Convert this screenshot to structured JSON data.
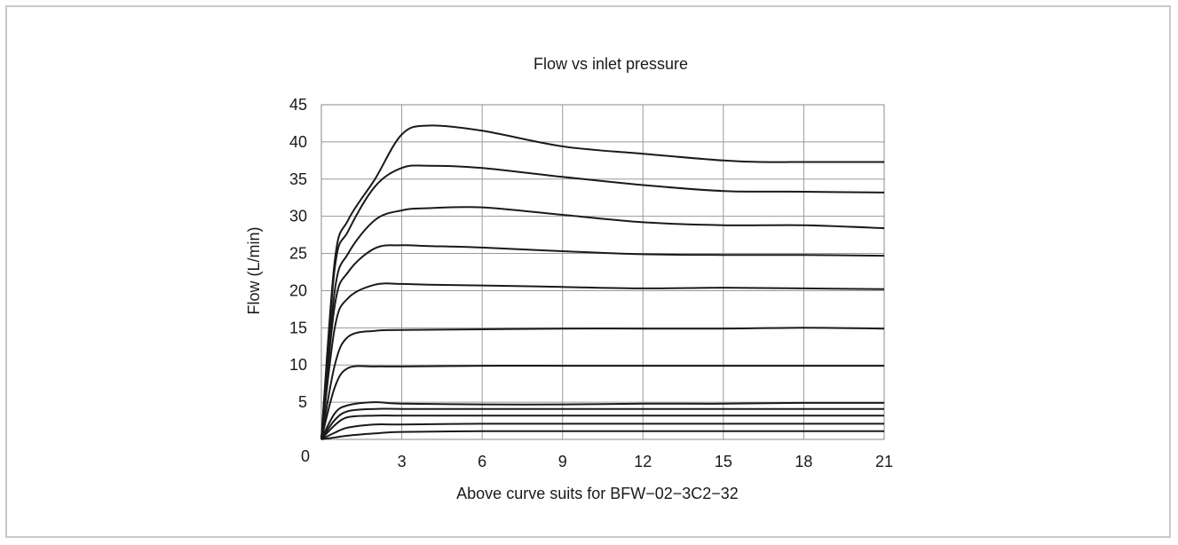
{
  "chart_data": {
    "type": "line",
    "title": "Flow vs inlet pressure",
    "xlabel": "Above curve suits for BFW−02−3C2−32",
    "ylabel": "Flow (L/min)",
    "xlim": [
      0,
      21
    ],
    "ylim": [
      0,
      45
    ],
    "x_ticks": [
      "3",
      "6",
      "9",
      "12",
      "15",
      "18",
      "21"
    ],
    "x_origin_label": "0",
    "y_ticks": [
      "5",
      "10",
      "15",
      "20",
      "25",
      "30",
      "35",
      "40",
      "45"
    ],
    "grid": true,
    "line_color": "#1a1a1a",
    "series": [
      {
        "x": [
          0,
          0.5,
          1,
          2,
          3,
          4,
          6,
          9,
          12,
          15,
          16.5,
          18,
          21
        ],
        "y": [
          0,
          24,
          29.5,
          35,
          41,
          42.2,
          41.5,
          39.4,
          38.4,
          37.5,
          37.3,
          37.3,
          37.3
        ]
      },
      {
        "x": [
          0,
          0.5,
          1,
          2,
          3,
          4,
          6,
          9,
          12,
          15,
          18,
          21
        ],
        "y": [
          0,
          23,
          28,
          34,
          36.5,
          36.8,
          36.5,
          35.3,
          34.2,
          33.4,
          33.3,
          33.2
        ]
      },
      {
        "x": [
          0,
          0.5,
          1,
          2,
          3,
          4,
          6,
          9,
          12,
          15,
          18,
          21
        ],
        "y": [
          0,
          20,
          25,
          29.5,
          30.8,
          31.1,
          31.2,
          30.2,
          29.2,
          28.8,
          28.8,
          28.4
        ]
      },
      {
        "x": [
          0,
          0.5,
          1,
          2,
          3,
          4,
          6,
          9,
          12,
          15,
          18,
          21
        ],
        "y": [
          0,
          18,
          22.5,
          25.7,
          26.1,
          26.0,
          25.8,
          25.3,
          24.9,
          24.8,
          24.8,
          24.7
        ]
      },
      {
        "x": [
          0,
          0.5,
          1,
          2,
          3,
          4,
          6,
          9,
          12,
          15,
          18,
          21
        ],
        "y": [
          0,
          15,
          19,
          20.8,
          20.9,
          20.8,
          20.7,
          20.5,
          20.3,
          20.4,
          20.3,
          20.2
        ]
      },
      {
        "x": [
          0,
          0.5,
          1,
          2,
          3,
          6,
          9,
          12,
          15,
          18,
          21
        ],
        "y": [
          0,
          10,
          13.8,
          14.6,
          14.7,
          14.8,
          14.9,
          14.9,
          14.9,
          15.0,
          14.9
        ]
      },
      {
        "x": [
          0,
          0.5,
          1,
          2,
          3,
          6,
          9,
          12,
          15,
          18,
          21
        ],
        "y": [
          0,
          7,
          9.6,
          9.8,
          9.8,
          9.9,
          9.9,
          9.9,
          9.9,
          9.9,
          9.9
        ]
      },
      {
        "x": [
          0,
          0.5,
          1,
          2,
          3,
          6,
          9,
          12,
          15,
          18,
          21
        ],
        "y": [
          0,
          3.5,
          4.6,
          5.0,
          4.8,
          4.7,
          4.7,
          4.8,
          4.8,
          4.9,
          4.9
        ]
      },
      {
        "x": [
          0,
          0.5,
          1,
          2,
          3,
          6,
          9,
          12,
          15,
          18,
          21
        ],
        "y": [
          0,
          2.6,
          3.8,
          4.1,
          4.1,
          4.1,
          4.1,
          4.1,
          4.1,
          4.1,
          4.1
        ]
      },
      {
        "x": [
          0,
          0.5,
          1,
          2,
          3,
          6,
          9,
          12,
          15,
          18,
          21
        ],
        "y": [
          0,
          1.9,
          3.0,
          3.2,
          3.2,
          3.2,
          3.2,
          3.2,
          3.2,
          3.2,
          3.2
        ]
      },
      {
        "x": [
          0,
          0.5,
          1,
          2,
          3,
          6,
          9,
          12,
          15,
          18,
          21
        ],
        "y": [
          0,
          0.9,
          1.6,
          2.0,
          2.0,
          2.1,
          2.1,
          2.1,
          2.1,
          2.1,
          2.1
        ]
      },
      {
        "x": [
          0,
          1,
          2,
          3,
          6,
          9,
          12,
          15,
          18,
          21
        ],
        "y": [
          0,
          0.5,
          0.8,
          1.0,
          1.1,
          1.1,
          1.1,
          1.1,
          1.1,
          1.1
        ]
      }
    ]
  }
}
